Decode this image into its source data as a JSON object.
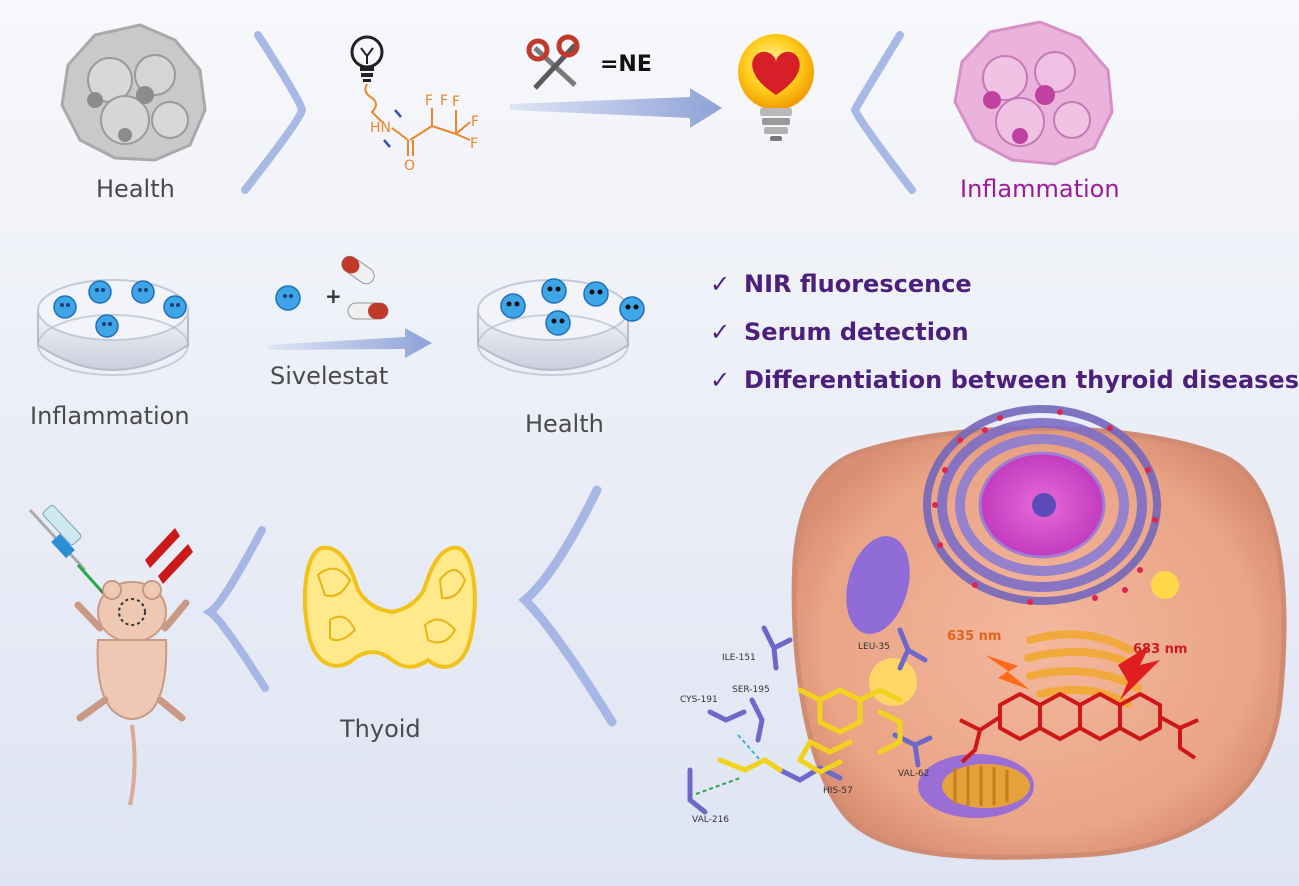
{
  "top": {
    "health_label": "Health",
    "inflammation_label": "Inflammation",
    "enzyme_label": "=NE",
    "probe_atoms": {
      "nh": "HN",
      "o": "O",
      "f1": "F",
      "f2": "F",
      "f3": "F",
      "f4": "F",
      "f5": "F"
    }
  },
  "middle": {
    "dish_left_label": "Inflammation",
    "drug_label": "Sivelestat",
    "plus": "+",
    "dish_right_label": "Health"
  },
  "features": [
    {
      "check": "✓",
      "text": "NIR fluorescence"
    },
    {
      "check": "✓",
      "text": "Serum detection"
    },
    {
      "check": "✓",
      "text": "Differentiation between thyroid diseases"
    }
  ],
  "bottom": {
    "thyroid_label": "Thyoid",
    "excitation_label": "635 nm",
    "emission_label": "683 nm",
    "residues": [
      "ILE-151",
      "LEU-35",
      "CYS-191",
      "SER-195",
      "VAL-62",
      "HIS-57",
      "VAL-216"
    ]
  },
  "colors": {
    "accent_purple": "#4b1f7a",
    "inflammation_pink": "#a0199a",
    "arrow_blue": "#8ea2d8",
    "cell_peach": "#e8a68c"
  }
}
